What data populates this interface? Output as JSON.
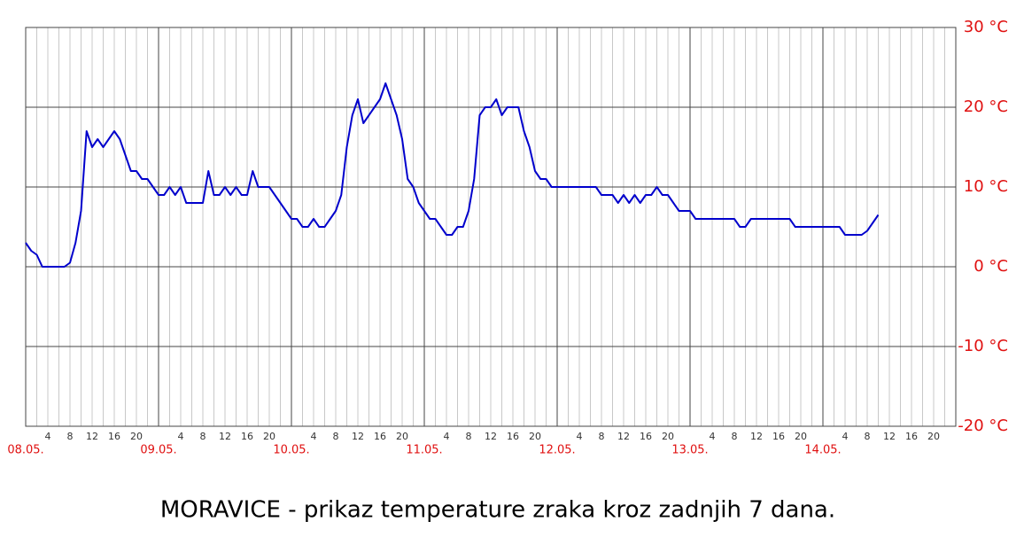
{
  "chart_data": {
    "type": "line",
    "title": "MORAVICE - prikaz temperature zraka kroz zadnjih 7 dana.",
    "xlim": [
      0,
      168
    ],
    "xticks": [
      {
        "value": 0,
        "label": "08.05."
      },
      {
        "value": 24,
        "label": "09.05."
      },
      {
        "value": 48,
        "label": "10.05."
      },
      {
        "value": 72,
        "label": "11.05."
      },
      {
        "value": 96,
        "label": "12.05."
      },
      {
        "value": 120,
        "label": "13.05."
      },
      {
        "value": 144,
        "label": "14.05."
      }
    ],
    "xticks_minor": [
      {
        "value": 4,
        "label": "4"
      },
      {
        "value": 8,
        "label": "8"
      },
      {
        "value": 12,
        "label": "12"
      },
      {
        "value": 16,
        "label": "16"
      },
      {
        "value": 20,
        "label": "20"
      },
      {
        "value": 28,
        "label": "4"
      },
      {
        "value": 32,
        "label": "8"
      },
      {
        "value": 36,
        "label": "12"
      },
      {
        "value": 40,
        "label": "16"
      },
      {
        "value": 44,
        "label": "20"
      },
      {
        "value": 52,
        "label": "4"
      },
      {
        "value": 56,
        "label": "8"
      },
      {
        "value": 60,
        "label": "12"
      },
      {
        "value": 64,
        "label": "16"
      },
      {
        "value": 68,
        "label": "20"
      },
      {
        "value": 76,
        "label": "4"
      },
      {
        "value": 80,
        "label": "8"
      },
      {
        "value": 84,
        "label": "12"
      },
      {
        "value": 88,
        "label": "16"
      },
      {
        "value": 92,
        "label": "20"
      },
      {
        "value": 100,
        "label": "4"
      },
      {
        "value": 104,
        "label": "8"
      },
      {
        "value": 108,
        "label": "12"
      },
      {
        "value": 112,
        "label": "16"
      },
      {
        "value": 116,
        "label": "20"
      },
      {
        "value": 124,
        "label": "4"
      },
      {
        "value": 128,
        "label": "8"
      },
      {
        "value": 132,
        "label": "12"
      },
      {
        "value": 136,
        "label": "16"
      },
      {
        "value": 140,
        "label": "20"
      },
      {
        "value": 148,
        "label": "4"
      },
      {
        "value": 152,
        "label": "8"
      },
      {
        "value": 156,
        "label": "12"
      },
      {
        "value": 160,
        "label": "16"
      },
      {
        "value": 164,
        "label": "20"
      }
    ],
    "ylim": [
      -20,
      30
    ],
    "yticks": [
      {
        "value": -20,
        "label": "-20 °C"
      },
      {
        "value": -10,
        "label": "-10 °C"
      },
      {
        "value": 0,
        "label": "0 °C"
      },
      {
        "value": 10,
        "label": "10 °C"
      },
      {
        "value": 20,
        "label": "20 °C"
      },
      {
        "value": 30,
        "label": "30 °C"
      }
    ],
    "grid": true,
    "color": "#0000cc",
    "x": [
      0,
      1,
      2,
      3,
      4,
      5,
      6,
      7,
      8,
      9,
      10,
      11,
      12,
      13,
      14,
      15,
      16,
      17,
      18,
      19,
      20,
      21,
      22,
      23,
      24,
      25,
      26,
      27,
      28,
      29,
      30,
      31,
      32,
      33,
      34,
      35,
      36,
      37,
      38,
      39,
      40,
      41,
      42,
      43,
      44,
      45,
      46,
      47,
      48,
      49,
      50,
      51,
      52,
      53,
      54,
      55,
      56,
      57,
      58,
      59,
      60,
      61,
      62,
      63,
      64,
      65,
      66,
      67,
      68,
      69,
      70,
      71,
      72,
      73,
      74,
      75,
      76,
      77,
      78,
      79,
      80,
      81,
      82,
      83,
      84,
      85,
      86,
      87,
      88,
      89,
      90,
      91,
      92,
      93,
      94,
      95,
      96,
      97,
      98,
      99,
      100,
      101,
      102,
      103,
      104,
      105,
      106,
      107,
      108,
      109,
      110,
      111,
      112,
      113,
      114,
      115,
      116,
      117,
      118,
      119,
      120,
      121,
      122,
      123,
      124,
      125,
      126,
      127,
      128,
      129,
      130,
      131,
      132,
      133,
      134,
      135,
      136,
      137,
      138,
      139,
      140,
      141,
      142,
      143,
      144,
      145,
      146,
      147,
      148,
      149,
      150,
      151,
      152,
      153,
      154
    ],
    "values": [
      3,
      2,
      1.5,
      0,
      0,
      0,
      0,
      0,
      0.5,
      3,
      7,
      17,
      15,
      16,
      15,
      16,
      17,
      16,
      14,
      12,
      12,
      11,
      11,
      10,
      9,
      9,
      10,
      9,
      10,
      8,
      8,
      8,
      8,
      12,
      9,
      9,
      10,
      9,
      10,
      9,
      9,
      12,
      10,
      10,
      10,
      9,
      8,
      7,
      6,
      6,
      5,
      5,
      6,
      5,
      5,
      6,
      7,
      9,
      15,
      19,
      21,
      18,
      19,
      20,
      21,
      23,
      21,
      19,
      16,
      11,
      10,
      8,
      7,
      6,
      6,
      5,
      4,
      4,
      5,
      5,
      7,
      11,
      19,
      20,
      20,
      21,
      19,
      20,
      20,
      20,
      17,
      15,
      12,
      11,
      11,
      10,
      10,
      10,
      10,
      10,
      10,
      10,
      10,
      10,
      9,
      9,
      9,
      8,
      9,
      8,
      9,
      8,
      9,
      9,
      10,
      9,
      9,
      8,
      7,
      7,
      7,
      6,
      6,
      6,
      6,
      6,
      6,
      6,
      6,
      5,
      5,
      6,
      6,
      6,
      6,
      6,
      6,
      6,
      6,
      5,
      5,
      5,
      5,
      5,
      5,
      5,
      5,
      5,
      4,
      4,
      4,
      4,
      4.5,
      5.5,
      6.5
    ]
  }
}
